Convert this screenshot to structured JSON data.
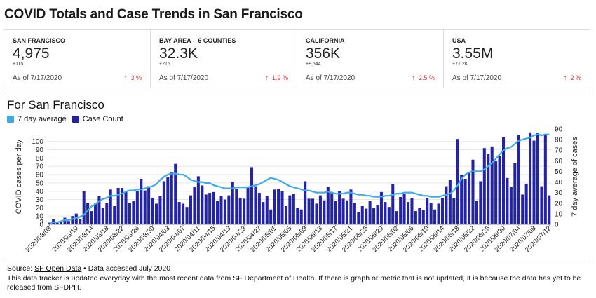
{
  "page": {
    "title": "COVID Totals and Case Trends in San Francisco"
  },
  "cards": [
    {
      "name": "SAN FRANCISCO",
      "value": "4,975",
      "delta": "+115",
      "as_of": "As of 7/17/2020",
      "pct": "3 %"
    },
    {
      "name": "BAY AREA – 6 COUNTIES",
      "value": "32.3K",
      "delta": "+215",
      "as_of": "As of 7/17/2020",
      "pct": "1.9 %"
    },
    {
      "name": "CALIFORNIA",
      "value": "356K",
      "delta": "+8,544",
      "as_of": "As of 7/17/2020",
      "pct": "2.5 %"
    },
    {
      "name": "USA",
      "value": "3.55M",
      "delta": "+71.2K",
      "as_of": "As of 7/17/2020",
      "pct": "2 %"
    }
  ],
  "colors": {
    "bar": "#2323a8",
    "line": "#3fa9ee",
    "up": "#d63a3a"
  },
  "chart_section": {
    "title": "For San Francisco",
    "legend": {
      "avg": "7 day average",
      "count": "Case Count"
    }
  },
  "footer": {
    "source_label": "Source: ",
    "source_link": "SF Open Data",
    "accessed": " • Data accessed July 2020",
    "note": "This data tracker is updated everyday with the most recent data from SF Department of Health. If there is graph or metric that is not updated, it is because the data has yet to be released from SFDPH."
  },
  "chart_data": {
    "type": "bar+line",
    "title": "For San Francisco",
    "ylabel_left": "COVID cases per day",
    "ylabel_right": "7 day average of cases",
    "ylim_left": [
      0,
      115
    ],
    "ylim_right": [
      0,
      90
    ],
    "yticks_left": [
      0,
      3,
      10,
      20,
      30,
      40,
      50,
      60,
      70,
      80,
      90,
      100
    ],
    "yticks_right": [
      0,
      10,
      20,
      30,
      40,
      50,
      60,
      70,
      80,
      90
    ],
    "start_date": "2020-03-03",
    "xtick_labels": [
      "2020/03/03",
      "2020/03/10",
      "2020/03/14",
      "2020/03/18",
      "2020/03/22",
      "2020/03/26",
      "2020/03/30",
      "2020/04/03",
      "2020/04/07",
      "2020/04/11",
      "2020/04/15",
      "2020/04/19",
      "2020/04/23",
      "2020/04/27",
      "2020/05/01",
      "2020/05/05",
      "2020/05/09",
      "2020/05/13",
      "2020/05/17",
      "2020/05/21",
      "2020/05/25",
      "2020/05/29",
      "2020/06/02",
      "2020/06/06",
      "2020/06/10",
      "2020/06/14",
      "2020/06/18",
      "2020/06/22",
      "2020/06/26",
      "2020/06/30",
      "2020/07/04",
      "2020/07/08",
      "2020/07/12"
    ],
    "series": [
      {
        "name": "Case Count",
        "axis": "left",
        "kind": "bar",
        "values": [
          2,
          6,
          3,
          4,
          8,
          4,
          10,
          13,
          6,
          40,
          26,
          16,
          25,
          34,
          20,
          26,
          42,
          22,
          44,
          44,
          40,
          26,
          28,
          40,
          55,
          41,
          46,
          32,
          25,
          34,
          52,
          57,
          63,
          73,
          27,
          25,
          21,
          35,
          45,
          58,
          47,
          36,
          38,
          39,
          28,
          34,
          30,
          35,
          51,
          43,
          32,
          31,
          44,
          69,
          46,
          38,
          27,
          34,
          18,
          42,
          43,
          40,
          22,
          35,
          37,
          20,
          18,
          52,
          31,
          31,
          25,
          35,
          29,
          45,
          38,
          28,
          40,
          31,
          29,
          42,
          26,
          15,
          22,
          19,
          28,
          20,
          23,
          39,
          27,
          21,
          49,
          16,
          33,
          37,
          27,
          32,
          16,
          20,
          17,
          32,
          26,
          18,
          25,
          32,
          46,
          54,
          32,
          103,
          60,
          55,
          63,
          78,
          28,
          52,
          92,
          85,
          94,
          76,
          82,
          105,
          56,
          45,
          74,
          108,
          36,
          49,
          111,
          101,
          110,
          46,
          108,
          35
        ]
      },
      {
        "name": "7 day average",
        "axis": "right",
        "kind": "line",
        "values": [
          1,
          2,
          2,
          3,
          4,
          4,
          5,
          6,
          7,
          9,
          13,
          17,
          19,
          22,
          24,
          25,
          27,
          27,
          28,
          29,
          31,
          32,
          32,
          33,
          33,
          34,
          35,
          36,
          38,
          42,
          45,
          47,
          48,
          48,
          47,
          47,
          45,
          42,
          41,
          40,
          40,
          39,
          39,
          37,
          36,
          35,
          34,
          34,
          34,
          35,
          35,
          35,
          35,
          36,
          37,
          38,
          40,
          42,
          44,
          43,
          42,
          40,
          38,
          36,
          35,
          34,
          33,
          32,
          32,
          31,
          30,
          30,
          30,
          31,
          30,
          29,
          29,
          29,
          30,
          30,
          29,
          28,
          28,
          27,
          27,
          26,
          26,
          26,
          27,
          27,
          28,
          29,
          29,
          30,
          30,
          30,
          29,
          28,
          27,
          27,
          26,
          26,
          26,
          27,
          28,
          29,
          32,
          37,
          43,
          47,
          49,
          50,
          50,
          50,
          52,
          55,
          58,
          62,
          66,
          70,
          72,
          73,
          76,
          79,
          80,
          81,
          82,
          84,
          85,
          84,
          85,
          85
        ]
      }
    ]
  }
}
